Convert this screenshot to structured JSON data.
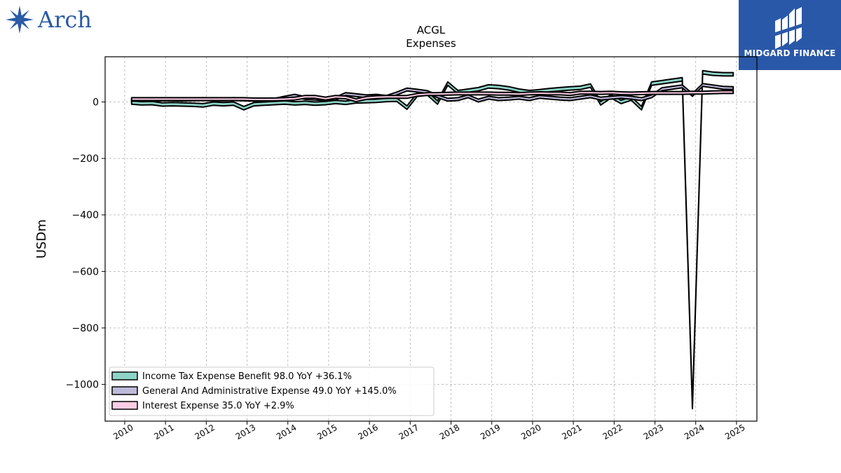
{
  "brand_left": {
    "name": "Arch",
    "color": "#2a5aa6"
  },
  "brand_right": {
    "name": "MIDGARD FINANCE",
    "bg_color": "#2a58a8"
  },
  "chart_data": {
    "type": "area",
    "title": "ACGL",
    "subtitle": "Expenses",
    "ylabel": "USDm",
    "xlabel": "",
    "ylim": [
      -1130,
      160
    ],
    "xlim": [
      2009.52,
      2025.5
    ],
    "yticks": [
      0,
      -200,
      -400,
      -600,
      -800,
      -1000
    ],
    "ytick_labels": [
      "0",
      "−200",
      "−400",
      "−600",
      "−800",
      "−1000"
    ],
    "xticks": [
      2010,
      2011,
      2012,
      2013,
      2014,
      2015,
      2016,
      2017,
      2018,
      2019,
      2020,
      2021,
      2022,
      2023,
      2024,
      2025
    ],
    "xtick_labels": [
      "2010",
      "2011",
      "2012",
      "2013",
      "2014",
      "2015",
      "2016",
      "2017",
      "2018",
      "2019",
      "2020",
      "2021",
      "2022",
      "2023",
      "2024",
      "2025"
    ],
    "grid": true,
    "legend_position": "lower-left",
    "legend": [
      "Income Tax Expense Benefit  98.0 YoY +36.1%",
      "General And Administrative Expense  49.0 YoY +145.0%",
      "Interest Expense  35.0 YoY +2.9%"
    ],
    "series": [
      {
        "name": "Income Tax Expense Benefit",
        "color": "#8dd3c7",
        "x": [
          2010.17,
          2010.42,
          2010.67,
          2010.92,
          2011.17,
          2011.42,
          2011.67,
          2011.92,
          2012.17,
          2012.42,
          2012.67,
          2012.92,
          2013.17,
          2013.42,
          2013.67,
          2013.92,
          2014.17,
          2014.42,
          2014.67,
          2014.92,
          2015.17,
          2015.42,
          2015.67,
          2015.92,
          2016.17,
          2016.42,
          2016.67,
          2016.92,
          2017.17,
          2017.42,
          2017.67,
          2017.92,
          2018.17,
          2018.42,
          2018.67,
          2018.92,
          2019.17,
          2019.42,
          2019.67,
          2019.92,
          2020.17,
          2020.42,
          2020.67,
          2020.92,
          2021.17,
          2021.42,
          2021.67,
          2021.92,
          2022.17,
          2022.42,
          2022.67,
          2022.92,
          2023.17,
          2023.42,
          2023.67,
          2023.92,
          2024.17,
          2024.42,
          2024.67,
          2024.92
        ],
        "values": [
          -2,
          -5,
          -4,
          -9,
          -8,
          -9,
          -10,
          -12,
          -6,
          -8,
          -6,
          -22,
          -8,
          -6,
          -4,
          -2,
          -5,
          -3,
          -6,
          -4,
          0,
          -3,
          2,
          3,
          4,
          7,
          8,
          -20,
          25,
          30,
          -2,
          65,
          35,
          40,
          45,
          55,
          53,
          48,
          40,
          35,
          38,
          42,
          45,
          48,
          50,
          58,
          -5,
          20,
          0,
          12,
          -22,
          65,
          70,
          75,
          80,
          -1080,
          105,
          100,
          98,
          98
        ]
      },
      {
        "name": "General And Administrative Expense",
        "color": "#bebada",
        "x": [
          2010.17,
          2010.42,
          2010.67,
          2010.92,
          2011.17,
          2011.42,
          2011.67,
          2011.92,
          2012.17,
          2012.42,
          2012.67,
          2012.92,
          2013.17,
          2013.42,
          2013.67,
          2013.92,
          2014.17,
          2014.42,
          2014.67,
          2014.92,
          2015.17,
          2015.42,
          2015.67,
          2015.92,
          2016.17,
          2016.42,
          2016.67,
          2016.92,
          2017.17,
          2017.42,
          2017.67,
          2017.92,
          2018.17,
          2018.42,
          2018.67,
          2018.92,
          2019.17,
          2019.42,
          2019.67,
          2019.92,
          2020.17,
          2020.42,
          2020.67,
          2020.92,
          2021.17,
          2021.42,
          2021.67,
          2021.92,
          2022.17,
          2022.42,
          2022.67,
          2022.92,
          2023.17,
          2023.42,
          2023.67,
          2023.92,
          2024.17,
          2024.42,
          2024.67,
          2024.92
        ],
        "values": [
          8,
          7,
          8,
          9,
          9,
          8,
          9,
          10,
          9,
          9,
          10,
          9,
          8,
          7,
          8,
          15,
          22,
          14,
          12,
          10,
          12,
          28,
          24,
          20,
          22,
          18,
          30,
          44,
          40,
          35,
          20,
          8,
          10,
          20,
          5,
          15,
          10,
          12,
          15,
          10,
          18,
          15,
          12,
          10,
          15,
          20,
          12,
          15,
          18,
          15,
          10,
          20,
          45,
          50,
          55,
          25,
          60,
          55,
          50,
          49
        ]
      },
      {
        "name": "Interest Expense",
        "color": "#fccde5",
        "x": [
          2010.17,
          2010.42,
          2010.67,
          2010.92,
          2011.17,
          2011.42,
          2011.67,
          2011.92,
          2012.17,
          2012.42,
          2012.67,
          2012.92,
          2013.17,
          2013.42,
          2013.67,
          2013.92,
          2014.17,
          2014.42,
          2014.67,
          2014.92,
          2015.17,
          2015.42,
          2015.67,
          2015.92,
          2016.17,
          2016.42,
          2016.67,
          2016.92,
          2017.17,
          2017.42,
          2017.67,
          2017.92,
          2018.17,
          2018.42,
          2018.67,
          2018.92,
          2019.17,
          2019.42,
          2019.67,
          2019.92,
          2020.17,
          2020.42,
          2020.67,
          2020.92,
          2021.17,
          2021.42,
          2021.67,
          2021.92,
          2022.17,
          2022.42,
          2022.67,
          2022.92,
          2023.17,
          2023.42,
          2023.67,
          2023.92,
          2024.17,
          2024.42,
          2024.67,
          2024.92
        ],
        "values": [
          10,
          10,
          10,
          10,
          10,
          10,
          10,
          10,
          10,
          10,
          10,
          10,
          9,
          9,
          9,
          10,
          12,
          18,
          18,
          12,
          18,
          16,
          6,
          14,
          17,
          18,
          18,
          18,
          25,
          28,
          28,
          29,
          30,
          30,
          30,
          30,
          29,
          29,
          28,
          30,
          31,
          30,
          30,
          28,
          33,
          33,
          32,
          33,
          31,
          30,
          31,
          32,
          32,
          32,
          32,
          33,
          33,
          34,
          35,
          35
        ]
      }
    ]
  }
}
